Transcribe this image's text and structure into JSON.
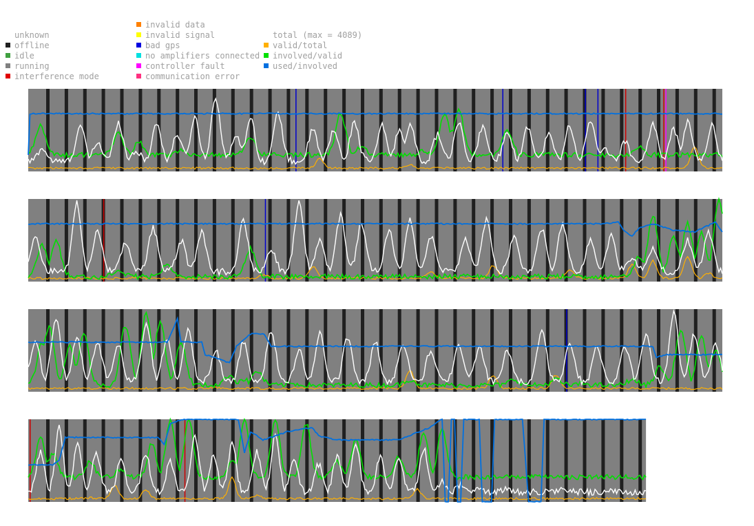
{
  "legend": {
    "status": [
      {
        "label": "unknown",
        "color": null
      },
      {
        "label": "offline",
        "color": "#202020"
      },
      {
        "label": "idle",
        "color": "#40a040"
      },
      {
        "label": "running",
        "color": "#808080"
      },
      {
        "label": "interference mode",
        "color": "#e00000"
      }
    ],
    "errors": [
      {
        "label": "invalid data",
        "color": "#ff8000"
      },
      {
        "label": "invalid signal",
        "color": "#ffff00"
      },
      {
        "label": "bad gps",
        "color": "#0000e0"
      },
      {
        "label": "no amplifiers connected",
        "color": "#00e0e0"
      },
      {
        "label": "controller fault",
        "color": "#ff00ff"
      },
      {
        "label": "communication error",
        "color": "#ff3080"
      }
    ],
    "series": [
      {
        "label": "total (max = 4089)",
        "color": "#ffffff"
      },
      {
        "label": "valid/total",
        "color": "#ffb000"
      },
      {
        "label": "involved/valid",
        "color": "#00e000"
      },
      {
        "label": "used/involved",
        "color": "#0070e0"
      }
    ]
  },
  "chart_data": {
    "type": "line",
    "y_range": [
      0,
      1
    ],
    "series_names": [
      "total",
      "valid/total",
      "involved/valid",
      "used/involved"
    ],
    "colors": {
      "running": "#808080",
      "offline": "#202020",
      "interference": "#cc0000",
      "bad_gps": "#0000cc",
      "controller_fault": "#ff00ff",
      "total": "#ffffff",
      "valid": "#ffb000",
      "involved": "#00e000",
      "used": "#0070e0"
    },
    "strips": [
      {
        "events": [
          {
            "x": 0.385,
            "type": "bad_gps"
          },
          {
            "x": 0.683,
            "type": "bad_gps"
          },
          {
            "x": 0.802,
            "type": "bad_gps"
          },
          {
            "x": 0.82,
            "type": "bad_gps"
          },
          {
            "x": 0.86,
            "type": "interference"
          },
          {
            "x": 0.915,
            "type": "interference"
          },
          {
            "x": 0.918,
            "type": "controller_fault"
          }
        ],
        "peaks_total": [
          [
            0.02,
            0.28
          ],
          [
            0.075,
            0.55
          ],
          [
            0.1,
            0.35
          ],
          [
            0.13,
            0.6
          ],
          [
            0.155,
            0.25
          ],
          [
            0.185,
            0.58
          ],
          [
            0.215,
            0.45
          ],
          [
            0.24,
            0.65
          ],
          [
            0.27,
            0.9
          ],
          [
            0.3,
            0.45
          ],
          [
            0.32,
            0.65
          ],
          [
            0.36,
            0.7
          ],
          [
            0.41,
            0.5
          ],
          [
            0.44,
            0.5
          ],
          [
            0.47,
            0.6
          ],
          [
            0.51,
            0.55
          ],
          [
            0.535,
            0.5
          ],
          [
            0.55,
            0.58
          ],
          [
            0.59,
            0.45
          ],
          [
            0.62,
            0.58
          ],
          [
            0.655,
            0.55
          ],
          [
            0.69,
            0.5
          ],
          [
            0.72,
            0.55
          ],
          [
            0.75,
            0.45
          ],
          [
            0.78,
            0.55
          ],
          [
            0.81,
            0.6
          ],
          [
            0.83,
            0.3
          ],
          [
            0.86,
            0.35
          ],
          [
            0.9,
            0.58
          ],
          [
            0.93,
            0.5
          ],
          [
            0.95,
            0.6
          ],
          [
            0.985,
            0.55
          ]
        ],
        "peaks_valid": [
          [
            0.42,
            0.15
          ],
          [
            0.55,
            0.08
          ],
          [
            0.96,
            0.3
          ]
        ],
        "used": [
          [
            0,
            0.2
          ],
          [
            0.002,
            0.7
          ],
          [
            0.1,
            0.7
          ],
          [
            0.5,
            0.7
          ],
          [
            1,
            0.7
          ]
        ],
        "involved_base": 0.2,
        "peaks_involved": [
          [
            0.018,
            0.55
          ],
          [
            0.13,
            0.45
          ],
          [
            0.16,
            0.35
          ],
          [
            0.22,
            0.25
          ],
          [
            0.32,
            0.4
          ],
          [
            0.45,
            0.7
          ],
          [
            0.48,
            0.3
          ],
          [
            0.57,
            0.25
          ],
          [
            0.6,
            0.7
          ],
          [
            0.61,
            0.5
          ],
          [
            0.62,
            0.75
          ],
          [
            0.69,
            0.5
          ],
          [
            0.88,
            0.3
          ],
          [
            0.9,
            0.2
          ]
        ]
      },
      {
        "events": [
          {
            "x": 0.108,
            "type": "interference"
          },
          {
            "x": 0.341,
            "type": "bad_gps"
          }
        ],
        "peaks_total": [
          [
            0.01,
            0.55
          ],
          [
            0.07,
            0.95
          ],
          [
            0.1,
            0.6
          ],
          [
            0.14,
            0.45
          ],
          [
            0.18,
            0.65
          ],
          [
            0.22,
            0.5
          ],
          [
            0.25,
            0.6
          ],
          [
            0.31,
            0.75
          ],
          [
            0.35,
            0.4
          ],
          [
            0.39,
            0.95
          ],
          [
            0.42,
            0.5
          ],
          [
            0.45,
            0.8
          ],
          [
            0.48,
            0.7
          ],
          [
            0.52,
            0.6
          ],
          [
            0.55,
            0.75
          ],
          [
            0.58,
            0.55
          ],
          [
            0.63,
            0.5
          ],
          [
            0.66,
            0.75
          ],
          [
            0.7,
            0.55
          ],
          [
            0.74,
            0.65
          ],
          [
            0.77,
            0.7
          ],
          [
            0.81,
            0.5
          ],
          [
            0.84,
            0.55
          ],
          [
            0.87,
            0.3
          ],
          [
            0.9,
            0.4
          ],
          [
            0.95,
            0.5
          ],
          [
            0.98,
            0.6
          ]
        ],
        "peaks_valid": [
          [
            0.34,
            0.08
          ],
          [
            0.41,
            0.18
          ],
          [
            0.58,
            0.12
          ],
          [
            0.67,
            0.2
          ],
          [
            0.78,
            0.15
          ],
          [
            0.87,
            0.2
          ],
          [
            0.9,
            0.25
          ],
          [
            0.95,
            0.3
          ],
          [
            0.98,
            0.1
          ]
        ],
        "used": [
          [
            0,
            0.7
          ],
          [
            0.83,
            0.7
          ],
          [
            0.85,
            0.72
          ],
          [
            0.86,
            0.6
          ],
          [
            0.87,
            0.55
          ],
          [
            0.88,
            0.65
          ],
          [
            0.9,
            0.7
          ],
          [
            0.93,
            0.62
          ],
          [
            0.96,
            0.6
          ],
          [
            0.99,
            0.72
          ],
          [
            1,
            0.6
          ]
        ],
        "involved_base": 0.06,
        "peaks_involved": [
          [
            0.02,
            0.45
          ],
          [
            0.04,
            0.5
          ],
          [
            0.13,
            0.15
          ],
          [
            0.2,
            0.2
          ],
          [
            0.32,
            0.4
          ],
          [
            0.44,
            0.07
          ],
          [
            0.6,
            0.07
          ],
          [
            0.88,
            0.3
          ],
          [
            0.9,
            0.8
          ],
          [
            0.93,
            0.55
          ],
          [
            0.95,
            0.7
          ],
          [
            0.97,
            0.6
          ],
          [
            0.995,
            1.0
          ]
        ]
      },
      {
        "events": [
          {
            "x": 0.775,
            "type": "bad_gps"
          }
        ],
        "peaks_total": [
          [
            0.01,
            0.6
          ],
          [
            0.04,
            0.9
          ],
          [
            0.07,
            0.65
          ],
          [
            0.1,
            0.6
          ],
          [
            0.13,
            0.55
          ],
          [
            0.17,
            0.85
          ],
          [
            0.2,
            0.65
          ],
          [
            0.23,
            0.75
          ],
          [
            0.27,
            0.5
          ],
          [
            0.31,
            0.6
          ],
          [
            0.35,
            0.75
          ],
          [
            0.39,
            0.5
          ],
          [
            0.42,
            0.7
          ],
          [
            0.46,
            0.65
          ],
          [
            0.5,
            0.6
          ],
          [
            0.54,
            0.6
          ],
          [
            0.58,
            0.5
          ],
          [
            0.62,
            0.6
          ],
          [
            0.65,
            0.55
          ],
          [
            0.69,
            0.5
          ],
          [
            0.74,
            0.75
          ],
          [
            0.78,
            0.6
          ],
          [
            0.82,
            0.55
          ],
          [
            0.86,
            0.55
          ],
          [
            0.89,
            0.7
          ],
          [
            0.93,
            0.95
          ],
          [
            0.96,
            0.7
          ],
          [
            0.99,
            0.6
          ]
        ],
        "peaks_valid": [
          [
            0.27,
            0.05
          ],
          [
            0.55,
            0.25
          ],
          [
            0.67,
            0.2
          ],
          [
            0.76,
            0.2
          ]
        ],
        "used": [
          [
            0,
            0.6
          ],
          [
            0.2,
            0.6
          ],
          [
            0.215,
            0.88
          ],
          [
            0.22,
            0.6
          ],
          [
            0.25,
            0.6
          ],
          [
            0.255,
            0.45
          ],
          [
            0.28,
            0.38
          ],
          [
            0.29,
            0.35
          ],
          [
            0.3,
            0.55
          ],
          [
            0.32,
            0.7
          ],
          [
            0.34,
            0.7
          ],
          [
            0.35,
            0.55
          ],
          [
            0.4,
            0.55
          ],
          [
            0.8,
            0.55
          ],
          [
            0.9,
            0.55
          ],
          [
            0.905,
            0.42
          ],
          [
            0.92,
            0.45
          ],
          [
            1,
            0.45
          ]
        ],
        "involved_base": 0.08,
        "peaks_involved": [
          [
            0.02,
            0.6
          ],
          [
            0.03,
            0.8
          ],
          [
            0.06,
            0.55
          ],
          [
            0.08,
            0.7
          ],
          [
            0.14,
            0.8
          ],
          [
            0.17,
            0.95
          ],
          [
            0.19,
            0.85
          ],
          [
            0.22,
            0.6
          ],
          [
            0.29,
            0.2
          ],
          [
            0.31,
            0.15
          ],
          [
            0.33,
            0.25
          ],
          [
            0.38,
            0.1
          ],
          [
            0.55,
            0.15
          ],
          [
            0.7,
            0.15
          ],
          [
            0.76,
            0.15
          ],
          [
            0.8,
            0.1
          ],
          [
            0.87,
            0.15
          ],
          [
            0.91,
            0.3
          ],
          [
            0.94,
            0.75
          ],
          [
            0.97,
            0.65
          ],
          [
            0.99,
            0.5
          ]
        ]
      },
      {
        "extent": 0.89,
        "events": [
          {
            "x": 0.002,
            "type": "interference"
          },
          {
            "x": 0.225,
            "type": "interference"
          }
        ],
        "peaks_total": [
          [
            0.02,
            0.6
          ],
          [
            0.05,
            0.9
          ],
          [
            0.08,
            0.7
          ],
          [
            0.11,
            0.6
          ],
          [
            0.15,
            0.5
          ],
          [
            0.19,
            0.6
          ],
          [
            0.23,
            0.5
          ],
          [
            0.27,
            0.8
          ],
          [
            0.3,
            0.55
          ],
          [
            0.33,
            0.7
          ],
          [
            0.37,
            0.6
          ],
          [
            0.4,
            0.8
          ],
          [
            0.43,
            0.5
          ],
          [
            0.47,
            0.45
          ],
          [
            0.5,
            0.55
          ],
          [
            0.53,
            0.7
          ],
          [
            0.57,
            0.55
          ],
          [
            0.6,
            0.55
          ],
          [
            0.64,
            0.65
          ],
          [
            0.67,
            0.25
          ],
          [
            0.7,
            0.2
          ],
          [
            0.73,
            0.15
          ],
          [
            0.77,
            0.15
          ],
          [
            0.82,
            0.12
          ],
          [
            0.86,
            0.15
          ]
        ],
        "peaks_valid": [
          [
            0.1,
            0.05
          ],
          [
            0.14,
            0.2
          ],
          [
            0.19,
            0.15
          ],
          [
            0.33,
            0.3
          ],
          [
            0.37,
            0.08
          ],
          [
            0.63,
            0.15
          ]
        ],
        "used": [
          [
            0,
            0.45
          ],
          [
            0.04,
            0.45
          ],
          [
            0.05,
            0.5
          ],
          [
            0.06,
            0.78
          ],
          [
            0.21,
            0.78
          ],
          [
            0.22,
            0.7
          ],
          [
            0.215,
            0.55
          ],
          [
            0.23,
            0.95
          ],
          [
            0.25,
            1.0
          ],
          [
            0.34,
            1.0
          ],
          [
            0.35,
            0.6
          ],
          [
            0.36,
            0.85
          ],
          [
            0.38,
            0.75
          ],
          [
            0.42,
            0.85
          ],
          [
            0.46,
            0.9
          ],
          [
            0.47,
            0.8
          ],
          [
            0.5,
            0.75
          ],
          [
            0.6,
            0.75
          ],
          [
            0.65,
            0.9
          ],
          [
            0.67,
            1.0
          ],
          [
            0.675,
            0
          ],
          [
            0.68,
            0
          ],
          [
            0.685,
            1.0
          ],
          [
            0.69,
            1.0
          ],
          [
            0.695,
            0
          ],
          [
            0.7,
            0
          ],
          [
            0.705,
            1.0
          ],
          [
            0.73,
            1.0
          ],
          [
            0.735,
            0
          ],
          [
            0.75,
            0
          ],
          [
            0.755,
            1.0
          ],
          [
            0.8,
            1.0
          ],
          [
            0.81,
            0
          ],
          [
            0.83,
            0
          ],
          [
            0.835,
            1.0
          ],
          [
            0.89,
            1.0
          ]
        ],
        "involved_base": 0.3,
        "peaks_involved": [
          [
            0.02,
            0.8
          ],
          [
            0.04,
            0.6
          ],
          [
            0.1,
            0.5
          ],
          [
            0.15,
            0.4
          ],
          [
            0.2,
            0.7
          ],
          [
            0.23,
            1.0
          ],
          [
            0.26,
            1.0
          ],
          [
            0.33,
            0.5
          ],
          [
            0.35,
            1.0
          ],
          [
            0.4,
            1.0
          ],
          [
            0.45,
            0.95
          ],
          [
            0.5,
            0.5
          ],
          [
            0.53,
            0.75
          ],
          [
            0.6,
            0.55
          ],
          [
            0.64,
            0.85
          ],
          [
            0.67,
            0.9
          ],
          [
            0.69,
            0.2
          ]
        ]
      }
    ]
  }
}
